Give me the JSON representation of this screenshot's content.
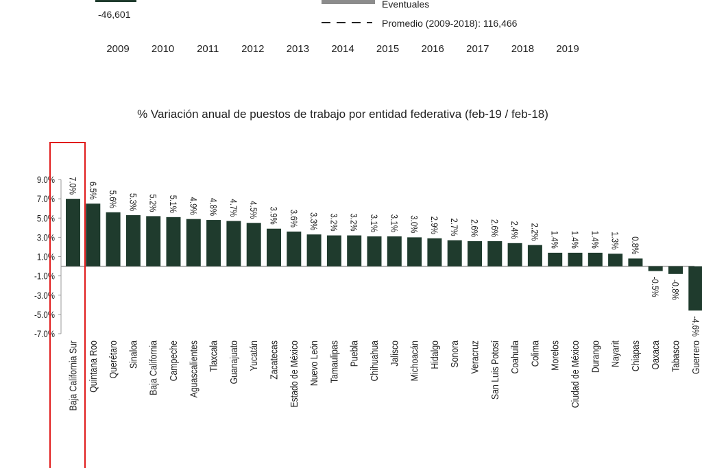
{
  "top_legend": {
    "neg_value": "-46,601",
    "eventuales": "Eventuales",
    "promedio": "Promedio (2009-2018): 116,466",
    "years": [
      "2009",
      "2010",
      "2011",
      "2012",
      "2013",
      "2014",
      "2015",
      "2016",
      "2017",
      "2018",
      "2019"
    ]
  },
  "colors": {
    "bar": "#1f3b2d",
    "axis": "#999999",
    "highlight": "#e01b1b",
    "legend_gray": "#8c8c8c"
  },
  "chart_data": {
    "type": "bar",
    "title": "% Variación anual de puestos de trabajo por entidad federativa (feb-19 / feb-18)",
    "xlabel": "",
    "ylabel": "",
    "ylim": [
      -7.0,
      9.0
    ],
    "yticks": [
      "9.0%",
      "7.0%",
      "5.0%",
      "3.0%",
      "1.0%",
      "-1.0%",
      "-3.0%",
      "-5.0%",
      "-7.0%"
    ],
    "ytick_values": [
      9,
      7,
      5,
      3,
      1,
      -1,
      -3,
      -5,
      -7
    ],
    "categories": [
      "Baja California Sur",
      "Quintana Roo",
      "Querétaro",
      "Sinaloa",
      "Baja California",
      "Campeche",
      "Aguascalientes",
      "Tlaxcala",
      "Guanajuato",
      "Yucatán",
      "Zacatecas",
      "Estado de México",
      "Nuevo León",
      "Tamaulipas",
      "Puebla",
      "Chihuahua",
      "Jalisco",
      "Michoacán",
      "Hidalgo",
      "Sonora",
      "Veracruz",
      "San Luis Potosí",
      "Coahuila",
      "Colima",
      "Morelos",
      "Ciudad de México",
      "Durango",
      "Nayarit",
      "Chiapas",
      "Oaxaca",
      "Tabasco",
      "Guerrero"
    ],
    "values": [
      7.0,
      6.5,
      5.6,
      5.3,
      5.2,
      5.1,
      4.9,
      4.8,
      4.7,
      4.5,
      3.9,
      3.6,
      3.3,
      3.2,
      3.2,
      3.1,
      3.1,
      3.0,
      2.9,
      2.7,
      2.6,
      2.6,
      2.4,
      2.2,
      1.4,
      1.4,
      1.4,
      1.3,
      0.8,
      -0.5,
      -0.8,
      -4.6
    ],
    "labels": [
      "7.0%",
      "6.5%",
      "5.6%",
      "5.3%",
      "5.2%",
      "5.1%",
      "4.9%",
      "4.8%",
      "4.7%",
      "4.5%",
      "3.9%",
      "3.6%",
      "3.3%",
      "3.2%",
      "3.2%",
      "3.1%",
      "3.1%",
      "3.0%",
      "2.9%",
      "2.7%",
      "2.6%",
      "2.6%",
      "2.4%",
      "2.2%",
      "1.4%",
      "1.4%",
      "1.4%",
      "1.3%",
      "0.8%",
      "-0.5%",
      "-0.8%",
      "-4.6%"
    ],
    "highlighted_category": "Baja California Sur",
    "grid": false,
    "legend": "none"
  }
}
